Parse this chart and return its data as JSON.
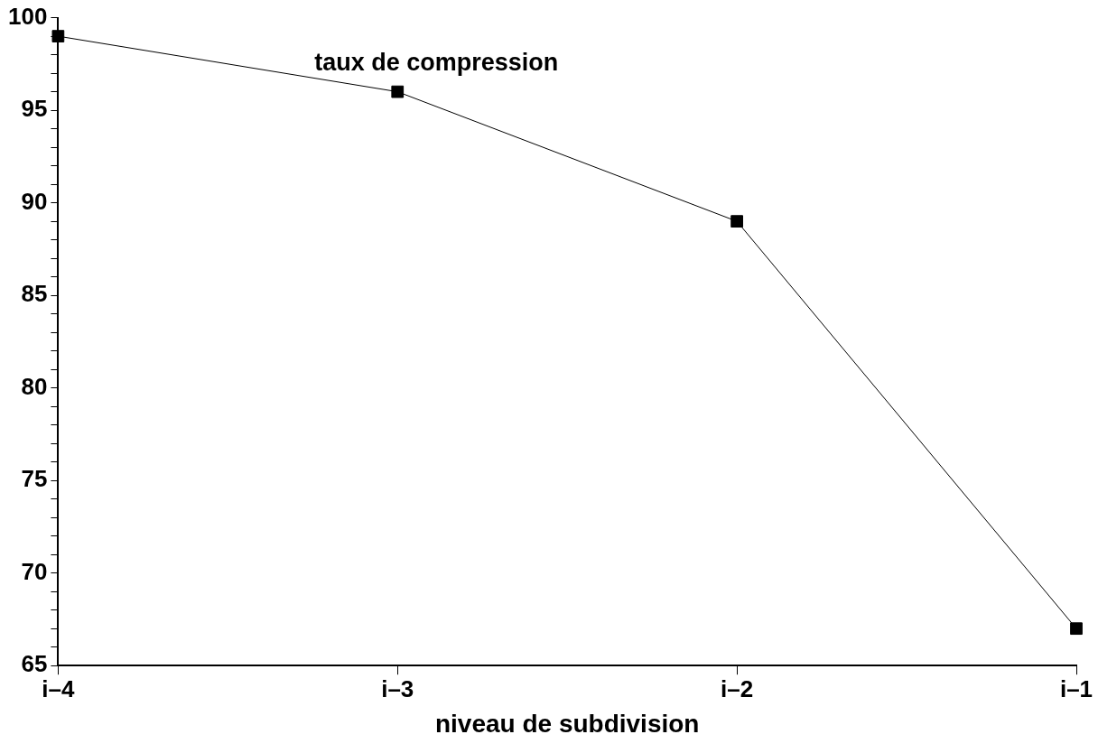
{
  "chart_data": {
    "type": "line",
    "xlabel": "niveau de subdivision",
    "categories": [
      "i–4",
      "i–3",
      "i–2",
      "i–1"
    ],
    "series": [
      {
        "name": "taux de compression",
        "color": "#000000",
        "values": [
          99,
          96,
          89,
          67
        ]
      }
    ],
    "ylim": [
      65,
      100
    ],
    "yticks": [
      65,
      {
        "value": 66,
        "label": null
      },
      {
        "value": 67,
        "label": null
      },
      {
        "value": 68,
        "label": null
      },
      {
        "value": 69,
        "label": null
      },
      70,
      {
        "value": 71,
        "label": null
      },
      {
        "value": 72,
        "label": null
      },
      {
        "value": 73,
        "label": null
      },
      {
        "value": 74,
        "label": null
      },
      75,
      {
        "value": 76,
        "label": null
      },
      {
        "value": 77,
        "label": null
      },
      {
        "value": 78,
        "label": null
      },
      {
        "value": 79,
        "label": null
      },
      80,
      {
        "value": 81,
        "label": null
      },
      {
        "value": 82,
        "label": null
      },
      {
        "value": 83,
        "label": null
      },
      {
        "value": 84,
        "label": null
      },
      85,
      {
        "value": 86,
        "label": null
      },
      {
        "value": 87,
        "label": null
      },
      {
        "value": 88,
        "label": null
      },
      {
        "value": 89,
        "label": null
      },
      90,
      {
        "value": 91,
        "label": null
      },
      {
        "value": 92,
        "label": null
      },
      {
        "value": 93,
        "label": null
      },
      {
        "value": 94,
        "label": null
      },
      95,
      {
        "value": 96,
        "label": null
      },
      {
        "value": 97,
        "label": null
      },
      {
        "value": 98,
        "label": null
      },
      {
        "value": 99,
        "label": null
      },
      100
    ],
    "grid": false,
    "legend": false,
    "marker": "square",
    "line_style": "solid"
  }
}
